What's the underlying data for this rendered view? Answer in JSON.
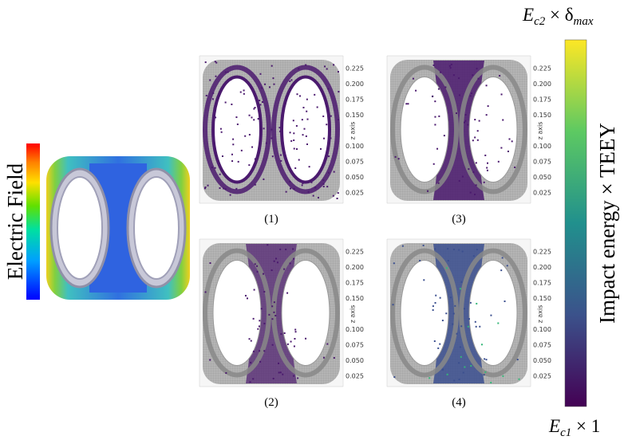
{
  "left_colorbar_label": "Electric Field",
  "right_colorbar_label": "Impact energy × TEEY",
  "top_label": [
    "E",
    "c2",
    " × δ",
    "max"
  ],
  "bottom_label": [
    "E",
    "c1",
    " × 1"
  ],
  "axis_title": "z axis",
  "axis_ticks": [
    "0.225",
    "0.200",
    "0.175",
    "0.150",
    "0.125",
    "0.100",
    "0.075",
    "0.050",
    "0.025"
  ],
  "panels": [
    {
      "label": "(1)"
    },
    {
      "label": "(3)"
    },
    {
      "label": "(2)"
    },
    {
      "label": "(4)"
    }
  ]
}
